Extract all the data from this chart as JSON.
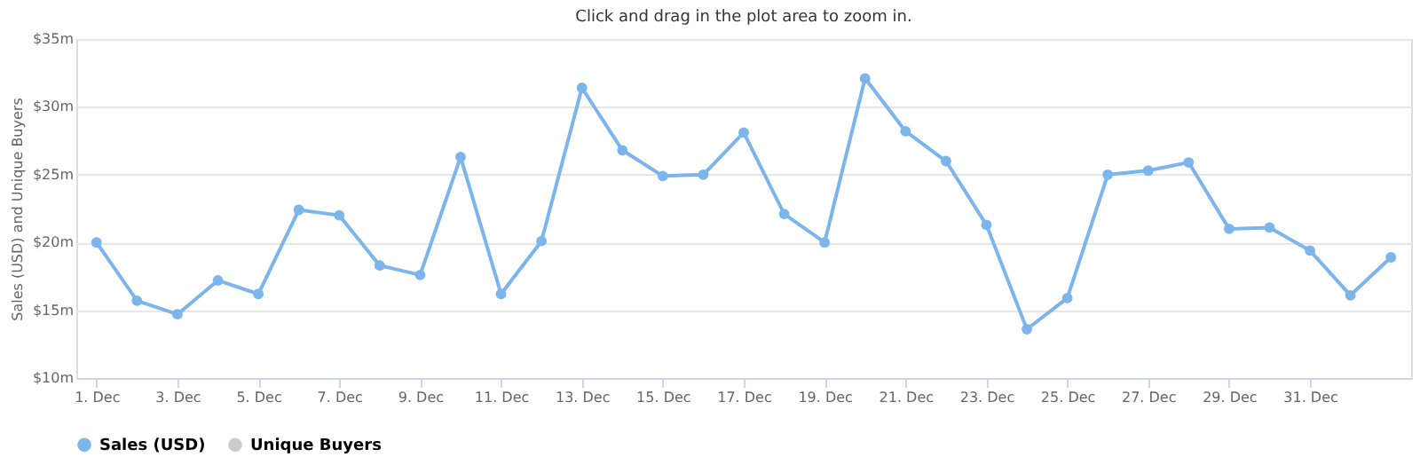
{
  "chart_data": {
    "type": "line",
    "subtitle": "Click and drag in the plot area to zoom in.",
    "ylabel": "Sales (USD) and Unique Buyers",
    "categories": [
      "1. Dec",
      null,
      "3. Dec",
      null,
      "5. Dec",
      null,
      "7. Dec",
      null,
      "9. Dec",
      null,
      "11. Dec",
      null,
      "13. Dec",
      null,
      "15. Dec",
      null,
      "17. Dec",
      null,
      "19. Dec",
      null,
      "21. Dec",
      null,
      "23. Dec",
      null,
      "25. Dec",
      null,
      "27. Dec",
      null,
      "29. Dec",
      null,
      "31. Dec",
      null,
      null
    ],
    "series": [
      {
        "name": "Sales (USD)",
        "color": "#7cb5ec",
        "values": [
          20.0,
          15.7,
          14.7,
          17.2,
          16.2,
          22.4,
          22.0,
          18.3,
          17.6,
          26.3,
          16.2,
          20.1,
          31.4,
          26.8,
          24.9,
          25.0,
          28.1,
          22.1,
          20.0,
          32.1,
          28.2,
          26.0,
          21.3,
          13.6,
          15.9,
          25.0,
          25.3,
          25.9,
          21.0,
          21.1,
          19.4,
          16.1,
          18.9
        ]
      },
      {
        "name": "Unique Buyers",
        "color": "#cccccc",
        "values": [
          null,
          null,
          null,
          null,
          null,
          null,
          null,
          null,
          null,
          null,
          null,
          null,
          null,
          null,
          null,
          null,
          null,
          null,
          null,
          null,
          null,
          null,
          null,
          null,
          null,
          null,
          null,
          null,
          null,
          null,
          null,
          null,
          null
        ]
      }
    ],
    "ylim": [
      10,
      35
    ],
    "yticks": [
      {
        "value": 10,
        "label": "$10m"
      },
      {
        "value": 15,
        "label": "$15m"
      },
      {
        "value": 20,
        "label": "$20m"
      },
      {
        "value": 25,
        "label": "$25m"
      },
      {
        "value": 30,
        "label": "$30m"
      },
      {
        "value": 35,
        "label": "$35m"
      }
    ],
    "grid": "y",
    "legend": "bottom",
    "marker": "circle",
    "line_style": "solid"
  }
}
